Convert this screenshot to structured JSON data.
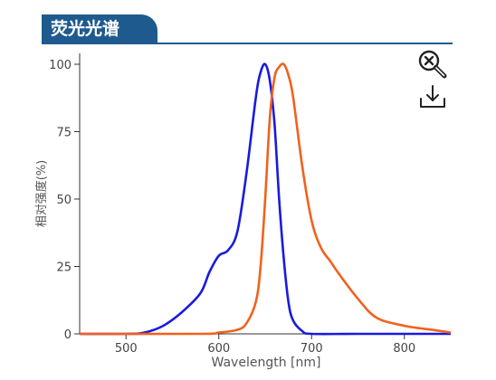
{
  "header": {
    "title": "荧光光谱"
  },
  "toolbar": {
    "zoom_icon": "zoom-reset-icon",
    "download_icon": "download-icon"
  },
  "colors": {
    "excitation": "#1a1adf",
    "emission": "#f0621e",
    "title_bg": "#1f5a8e"
  },
  "chart_data": {
    "type": "line",
    "title": "",
    "xlabel": "Wavelength [nm]",
    "ylabel": "相对强度(%)",
    "xlim": [
      450,
      850
    ],
    "ylim": [
      0,
      100
    ],
    "xticks": [
      500,
      600,
      700,
      800
    ],
    "yticks": [
      0,
      25,
      50,
      75,
      100
    ],
    "grid": false,
    "series": [
      {
        "color": "#1a1adf",
        "x": [
          450,
          500,
          520,
          540,
          560,
          580,
          590,
          600,
          610,
          620,
          630,
          640,
          645,
          650,
          655,
          660,
          665,
          670,
          675,
          680,
          690,
          700,
          750,
          850
        ],
        "y": [
          0,
          0,
          0.5,
          3,
          8,
          15,
          23,
          29,
          31,
          38,
          60,
          88,
          97,
          100,
          94,
          78,
          50,
          28,
          12,
          5,
          1,
          0,
          0,
          0
        ]
      },
      {
        "color": "#f0621e",
        "x": [
          450,
          580,
          600,
          620,
          630,
          640,
          645,
          650,
          655,
          660,
          665,
          670,
          675,
          680,
          690,
          700,
          710,
          720,
          730,
          750,
          770,
          800,
          830,
          850
        ],
        "y": [
          0,
          0,
          0.5,
          1.5,
          4,
          12,
          25,
          50,
          80,
          95,
          99,
          100,
          96,
          88,
          62,
          42,
          32,
          27,
          22,
          13,
          6,
          3,
          1.5,
          0.5
        ]
      }
    ]
  }
}
